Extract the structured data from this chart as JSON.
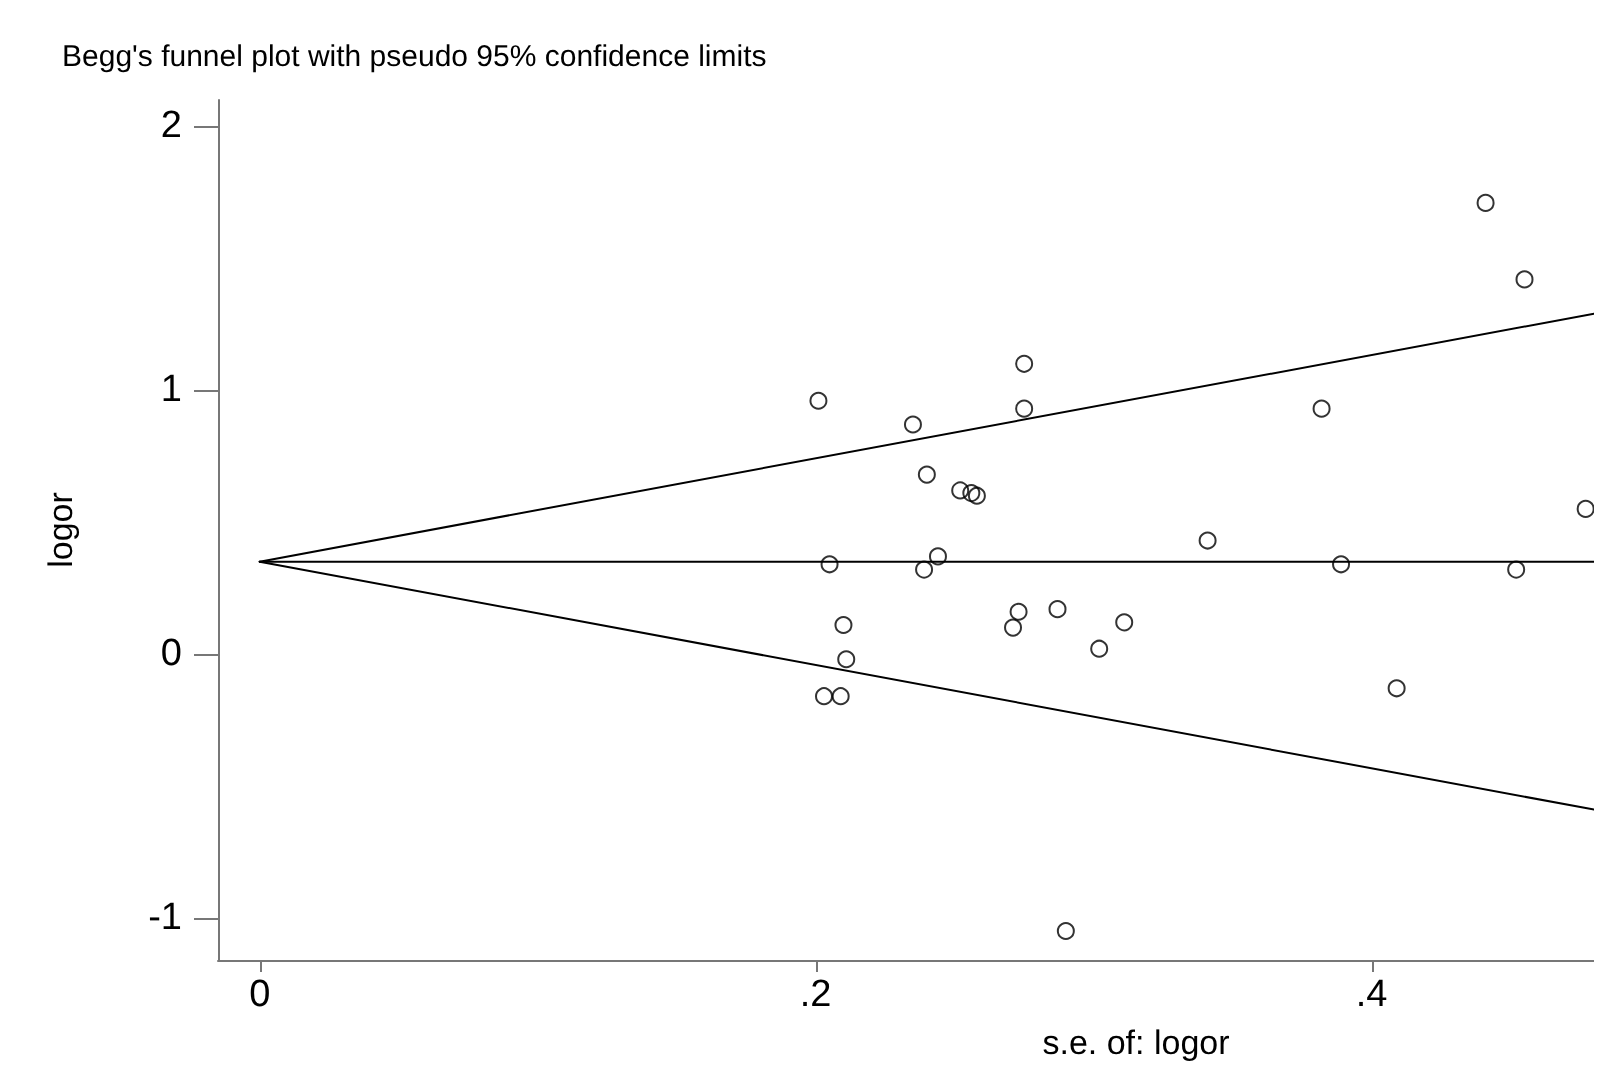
{
  "chart_data": {
    "type": "scatter",
    "title": "Begg's funnel plot with pseudo 95% confidence limits",
    "xlabel": "s.e. of: logor",
    "ylabel": "logor",
    "xlim": [
      -0.015,
      0.48
    ],
    "xticks": [
      {
        "value": 0,
        "label": "0"
      },
      {
        "value": 0.2,
        "label": ".2"
      },
      {
        "value": 0.4,
        "label": ".4"
      }
    ],
    "ylim": [
      -1.16,
      2.1
    ],
    "yticks": [
      -1,
      0,
      1,
      2
    ],
    "grid": false,
    "marker": "circle",
    "series": [
      {
        "color": "#000000",
        "x": [
          0.201,
          0.275,
          0.275,
          0.235,
          0.24,
          0.252,
          0.256,
          0.258,
          0.205,
          0.244,
          0.239,
          0.21,
          0.211,
          0.203,
          0.209,
          0.273,
          0.271,
          0.287,
          0.311,
          0.302,
          0.29,
          0.341,
          0.441,
          0.455,
          0.382,
          0.477,
          0.389,
          0.452,
          0.409
        ],
        "values": [
          0.96,
          1.1,
          0.93,
          0.87,
          0.68,
          0.62,
          0.61,
          0.6,
          0.34,
          0.37,
          0.32,
          0.11,
          -0.02,
          -0.16,
          -0.16,
          0.16,
          0.1,
          0.17,
          0.12,
          0.02,
          -1.05,
          0.43,
          1.71,
          1.42,
          0.93,
          0.55,
          0.34,
          0.32,
          -0.13
        ]
      },
      {
        "type": "line",
        "color": "#000000",
        "marker": "none",
        "line_style": "solid",
        "x": [
          0,
          0.48
        ],
        "values": [
          0.35,
          1.29
        ]
      },
      {
        "type": "line",
        "color": "#000000",
        "marker": "none",
        "line_style": "solid",
        "x": [
          0,
          0.48
        ],
        "values": [
          0.35,
          0.35
        ]
      },
      {
        "type": "line",
        "color": "#000000",
        "marker": "none",
        "line_style": "solid",
        "x": [
          0,
          0.48
        ],
        "values": [
          0.35,
          -0.59
        ]
      }
    ]
  }
}
